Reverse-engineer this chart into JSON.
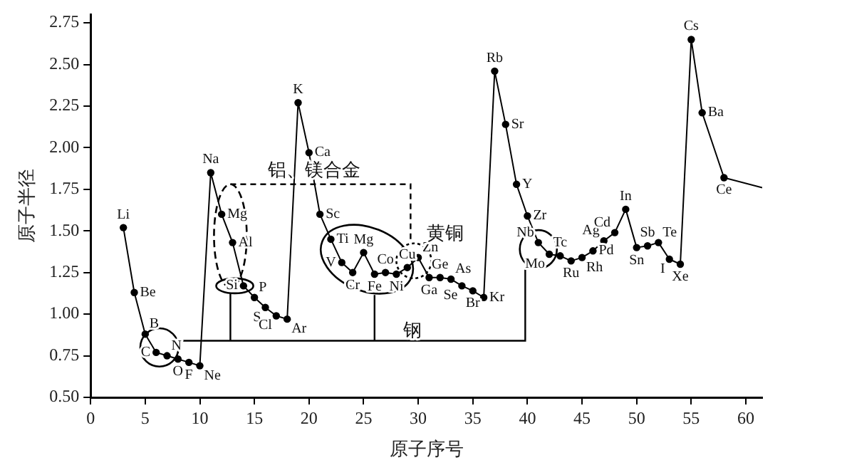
{
  "chart_data": {
    "type": "line",
    "xlabel": "原子序号",
    "ylabel": "原子半径",
    "x": [
      3,
      4,
      5,
      6,
      7,
      8,
      9,
      10,
      11,
      12,
      13,
      14,
      15,
      16,
      17,
      18,
      19,
      20,
      21,
      22,
      23,
      24,
      25,
      26,
      27,
      28,
      29,
      30,
      31,
      32,
      33,
      34,
      35,
      36,
      37,
      38,
      39,
      40,
      41,
      42,
      43,
      44,
      45,
      46,
      47,
      48,
      49,
      50,
      51,
      52,
      53,
      54,
      55,
      56,
      58,
      61.5
    ],
    "values": [
      1.52,
      1.13,
      0.88,
      0.77,
      0.75,
      0.73,
      0.71,
      0.69,
      1.85,
      1.6,
      1.43,
      1.17,
      1.1,
      1.04,
      0.99,
      0.97,
      2.27,
      1.97,
      1.6,
      1.45,
      1.31,
      1.25,
      1.37,
      1.24,
      1.25,
      1.24,
      1.28,
      1.34,
      1.22,
      1.22,
      1.21,
      1.17,
      1.14,
      1.1,
      2.46,
      2.14,
      1.78,
      1.59,
      1.43,
      1.36,
      1.35,
      1.32,
      1.34,
      1.38,
      1.44,
      1.49,
      1.63,
      1.4,
      1.41,
      1.43,
      1.33,
      1.3,
      2.65,
      2.21,
      1.82,
      1.76
    ],
    "color": "#000000",
    "marker": "circle",
    "line_style": "solid",
    "xlim": [
      0,
      61.5
    ],
    "ylim": [
      0.5,
      2.8
    ],
    "xticks": [
      0,
      5,
      10,
      15,
      20,
      25,
      30,
      35,
      40,
      45,
      50,
      55,
      60
    ],
    "yticks": [
      {
        "value": 0.5,
        "label": "0.50"
      },
      {
        "value": 0.75,
        "label": "0.75"
      },
      {
        "value": 1,
        "label": "1.00"
      },
      {
        "value": 1.25,
        "label": "1.25"
      },
      {
        "value": 1.5,
        "label": "1.50"
      },
      {
        "value": 1.75,
        "label": "1.75"
      },
      {
        "value": 2,
        "label": "2.00"
      },
      {
        "value": 2.25,
        "label": "2.25"
      },
      {
        "value": 2.5,
        "label": "2.50"
      },
      {
        "value": 2.75,
        "label": "2.75"
      }
    ],
    "grid": false,
    "legend": false,
    "annotations": [
      {
        "text": "Li",
        "x": 3,
        "y": 1.52
      },
      {
        "text": "Be",
        "x": 4,
        "y": 1.13
      },
      {
        "text": "B",
        "x": 5,
        "y": 0.88
      },
      {
        "text": "C",
        "x": 6,
        "y": 0.77
      },
      {
        "text": "N",
        "x": 7,
        "y": 0.75
      },
      {
        "text": "O",
        "x": 8,
        "y": 0.73
      },
      {
        "text": "F",
        "x": 9,
        "y": 0.71
      },
      {
        "text": "Ne",
        "x": 10,
        "y": 0.69
      },
      {
        "text": "Na",
        "x": 11,
        "y": 1.85
      },
      {
        "text": "Mg",
        "x": 12,
        "y": 1.6
      },
      {
        "text": "Al",
        "x": 13,
        "y": 1.43
      },
      {
        "text": "Si",
        "x": 14,
        "y": 1.17
      },
      {
        "text": "P",
        "x": 15,
        "y": 1.1
      },
      {
        "text": "S",
        "x": 16,
        "y": 1.04
      },
      {
        "text": "Cl",
        "x": 17,
        "y": 0.99
      },
      {
        "text": "Ar",
        "x": 18,
        "y": 0.97
      },
      {
        "text": "K",
        "x": 19,
        "y": 2.27
      },
      {
        "text": "Ca",
        "x": 20,
        "y": 1.97
      },
      {
        "text": "Sc",
        "x": 21,
        "y": 1.6
      },
      {
        "text": "Ti",
        "x": 22,
        "y": 1.45
      },
      {
        "text": "V",
        "x": 23,
        "y": 1.31
      },
      {
        "text": "Cr",
        "x": 24,
        "y": 1.25
      },
      {
        "text": "Mg",
        "x": 25,
        "y": 1.37
      },
      {
        "text": "Fe",
        "x": 26,
        "y": 1.24
      },
      {
        "text": "Co",
        "x": 27,
        "y": 1.25
      },
      {
        "text": "Ni",
        "x": 28,
        "y": 1.24
      },
      {
        "text": "Cu",
        "x": 29,
        "y": 1.28
      },
      {
        "text": "Zn",
        "x": 30,
        "y": 1.34
      },
      {
        "text": "Ga",
        "x": 31,
        "y": 1.22
      },
      {
        "text": "Ge",
        "x": 32,
        "y": 1.22
      },
      {
        "text": "As",
        "x": 33,
        "y": 1.21
      },
      {
        "text": "Se",
        "x": 34,
        "y": 1.17
      },
      {
        "text": "Br",
        "x": 35,
        "y": 1.14
      },
      {
        "text": "Kr",
        "x": 36,
        "y": 1.1
      },
      {
        "text": "Rb",
        "x": 37,
        "y": 2.46
      },
      {
        "text": "Sr",
        "x": 38,
        "y": 2.14
      },
      {
        "text": "Y",
        "x": 39,
        "y": 1.78
      },
      {
        "text": "Zr",
        "x": 40,
        "y": 1.59
      },
      {
        "text": "Nb",
        "x": 41,
        "y": 1.43
      },
      {
        "text": "Mo",
        "x": 42,
        "y": 1.36
      },
      {
        "text": "Tc",
        "x": 43,
        "y": 1.35
      },
      {
        "text": "Ru",
        "x": 44,
        "y": 1.32
      },
      {
        "text": "Rh",
        "x": 45,
        "y": 1.34
      },
      {
        "text": "Pd",
        "x": 46,
        "y": 1.38
      },
      {
        "text": "Ag",
        "x": 47,
        "y": 1.44
      },
      {
        "text": "Cd",
        "x": 48,
        "y": 1.49
      },
      {
        "text": "In",
        "x": 49,
        "y": 1.63
      },
      {
        "text": "Sn",
        "x": 50,
        "y": 1.4
      },
      {
        "text": "Sb",
        "x": 51,
        "y": 1.41
      },
      {
        "text": "Te",
        "x": 52,
        "y": 1.43
      },
      {
        "text": "I",
        "x": 53,
        "y": 1.33
      },
      {
        "text": "Xe",
        "x": 54,
        "y": 1.3
      },
      {
        "text": "Cs",
        "x": 55,
        "y": 2.65
      },
      {
        "text": "Ba",
        "x": 56,
        "y": 2.21
      },
      {
        "text": "Ce",
        "x": 58,
        "y": 1.82
      },
      "铝、镁合金",
      "黄铜",
      "钢"
    ]
  }
}
